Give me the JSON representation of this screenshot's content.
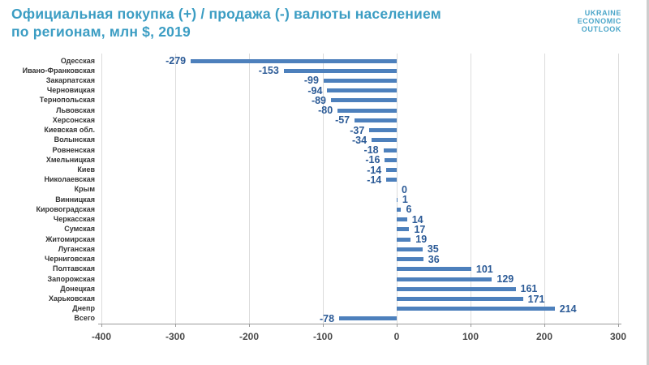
{
  "header": {
    "title_line1": "Официальная покупка (+) / продажа (-) валюты населением",
    "title_line2": "по регионам, млн $, 2019",
    "logo_lines": [
      "UKRAINE",
      "ECONOMIC",
      "OUTLOOK"
    ]
  },
  "colors": {
    "title": "#3b9dc3",
    "logo": "#4ba6c9",
    "bar": "#4d80bc",
    "value_label": "#2b5a96",
    "axis": "#9b9b9b",
    "gridline": "#dcdcdc",
    "category_label": "#333333",
    "tick_label": "#4a4a4a"
  },
  "chart_data": {
    "type": "bar",
    "orientation": "horizontal",
    "title": "Официальная покупка (+) / продажа (-) валюты населением по регионам, млн $, 2019",
    "xlabel": "",
    "ylabel": "",
    "xlim": [
      -400,
      300
    ],
    "x_ticks": [
      -400,
      -300,
      -200,
      -100,
      0,
      100,
      200,
      300
    ],
    "grid": true,
    "legend": false,
    "categories": [
      "Одесская",
      "Ивано-Франковская",
      "Закарпатская",
      "Черновицкая",
      "Тернопольская",
      "Львовская",
      "Херсонская",
      "Киевская обл.",
      "Волынская",
      "Ровненская",
      "Хмельницкая",
      "Киев",
      "Николаевская",
      "Крым",
      "Винницкая",
      "Кировоградская",
      "Черкасская",
      "Сумская",
      "Житомирская",
      "Луганская",
      "Черниговская",
      "Полтавская",
      "Запорожская",
      "Донецкая",
      "Харьковская",
      "Днепр",
      "Всего"
    ],
    "values": [
      -279,
      -153,
      -99,
      -94,
      -89,
      -80,
      -57,
      -37,
      -34,
      -18,
      -16,
      -14,
      -14,
      0,
      1,
      6,
      14,
      17,
      19,
      35,
      36,
      101,
      129,
      161,
      171,
      214,
      -78
    ]
  }
}
